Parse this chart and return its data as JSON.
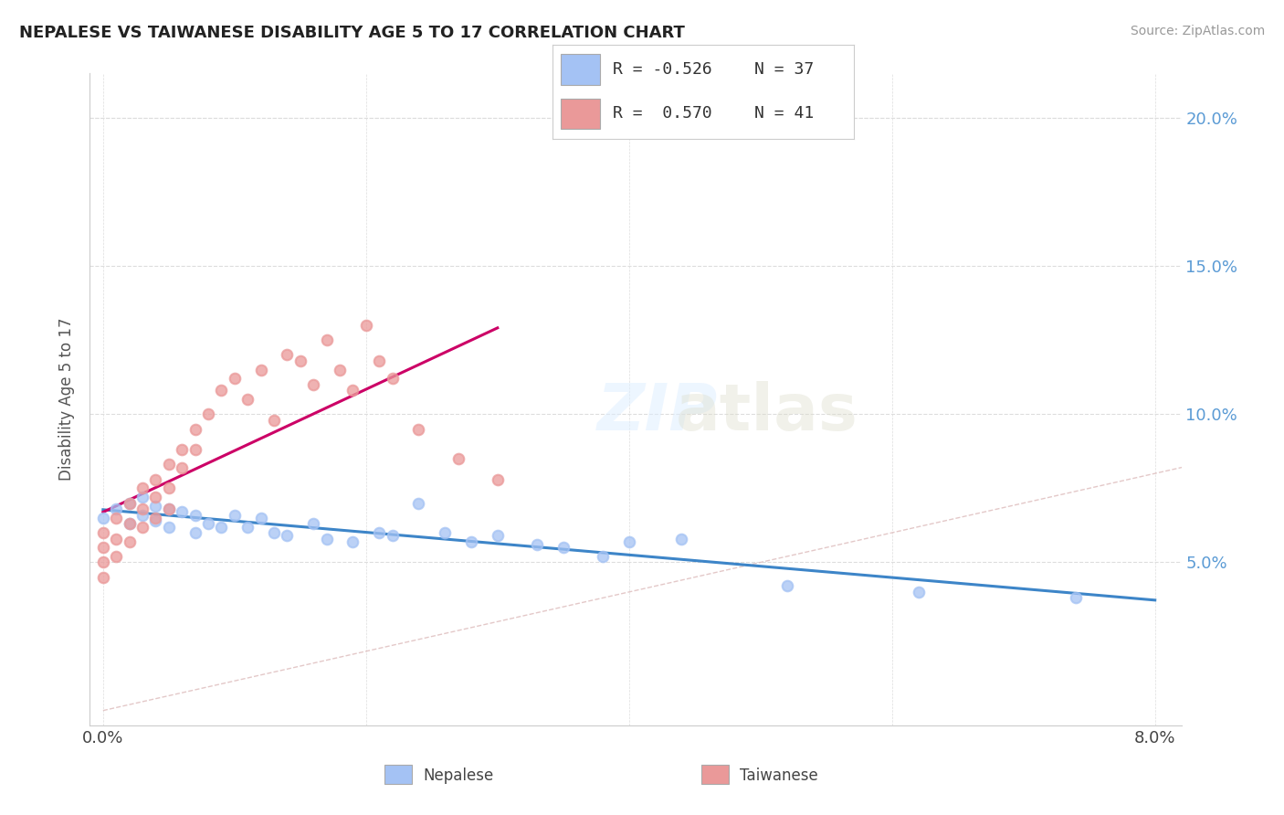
{
  "title": "NEPALESE VS TAIWANESE DISABILITY AGE 5 TO 17 CORRELATION CHART",
  "source_text": "Source: ZipAtlas.com",
  "ylabel": "Disability Age 5 to 17",
  "xlim": [
    -0.001,
    0.082
  ],
  "ylim": [
    -0.005,
    0.215
  ],
  "x_ticks": [
    0.0,
    0.02,
    0.04,
    0.06,
    0.08
  ],
  "x_tick_labels": [
    "0.0%",
    "",
    "",
    "",
    "8.0%"
  ],
  "y_ticks": [
    0.0,
    0.05,
    0.1,
    0.15,
    0.2
  ],
  "y_tick_labels_right": [
    "",
    "5.0%",
    "10.0%",
    "15.0%",
    "20.0%"
  ],
  "nepalese_R": -0.526,
  "nepalese_N": 37,
  "taiwanese_R": 0.57,
  "taiwanese_N": 41,
  "nepalese_color": "#a4c2f4",
  "taiwanese_color": "#ea9999",
  "nepalese_line_color": "#3d85c8",
  "taiwanese_line_color": "#cc0066",
  "identity_line_color": "#ddbbbb",
  "nepalese_x": [
    0.0,
    0.001,
    0.002,
    0.002,
    0.003,
    0.003,
    0.004,
    0.004,
    0.005,
    0.005,
    0.006,
    0.007,
    0.007,
    0.008,
    0.009,
    0.01,
    0.011,
    0.012,
    0.013,
    0.014,
    0.016,
    0.017,
    0.019,
    0.021,
    0.022,
    0.024,
    0.026,
    0.028,
    0.03,
    0.033,
    0.035,
    0.038,
    0.04,
    0.044,
    0.052,
    0.062,
    0.074
  ],
  "nepalese_y": [
    0.065,
    0.068,
    0.07,
    0.063,
    0.072,
    0.066,
    0.069,
    0.064,
    0.068,
    0.062,
    0.067,
    0.066,
    0.06,
    0.063,
    0.062,
    0.066,
    0.062,
    0.065,
    0.06,
    0.059,
    0.063,
    0.058,
    0.057,
    0.06,
    0.059,
    0.07,
    0.06,
    0.057,
    0.059,
    0.056,
    0.055,
    0.052,
    0.057,
    0.058,
    0.042,
    0.04,
    0.038
  ],
  "taiwanese_x": [
    0.0,
    0.0,
    0.0,
    0.0,
    0.001,
    0.001,
    0.001,
    0.002,
    0.002,
    0.002,
    0.003,
    0.003,
    0.003,
    0.004,
    0.004,
    0.004,
    0.005,
    0.005,
    0.005,
    0.006,
    0.006,
    0.007,
    0.007,
    0.008,
    0.009,
    0.01,
    0.011,
    0.012,
    0.013,
    0.014,
    0.015,
    0.016,
    0.017,
    0.018,
    0.019,
    0.02,
    0.021,
    0.022,
    0.024,
    0.027,
    0.03
  ],
  "taiwanese_y": [
    0.06,
    0.055,
    0.05,
    0.045,
    0.065,
    0.058,
    0.052,
    0.07,
    0.063,
    0.057,
    0.075,
    0.068,
    0.062,
    0.078,
    0.072,
    0.065,
    0.083,
    0.075,
    0.068,
    0.088,
    0.082,
    0.095,
    0.088,
    0.1,
    0.108,
    0.112,
    0.105,
    0.115,
    0.098,
    0.12,
    0.118,
    0.11,
    0.125,
    0.115,
    0.108,
    0.13,
    0.118,
    0.112,
    0.095,
    0.085,
    0.078
  ],
  "legend_R_nep": "R = -0.526",
  "legend_N_nep": "N = 37",
  "legend_R_tai": "R =  0.570",
  "legend_N_tai": "N = 41"
}
